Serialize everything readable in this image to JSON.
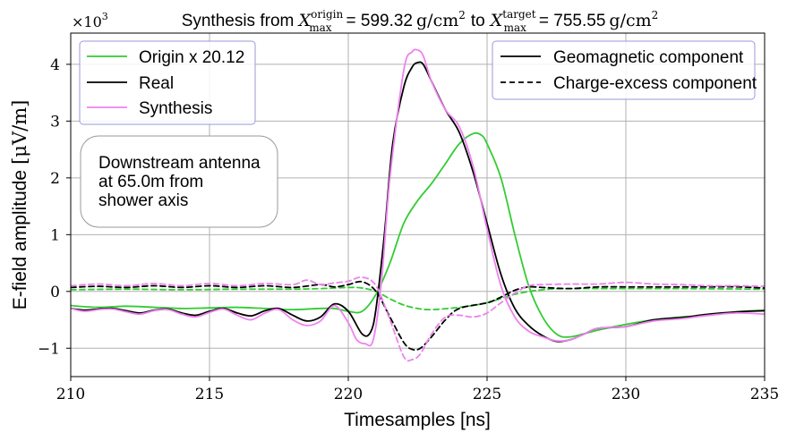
{
  "chart_data": {
    "type": "line",
    "title": {
      "prefix": "Synthesis from ",
      "origin_var": "X",
      "origin_sup": "origin",
      "origin_sub": "max",
      "origin_value": "= 599.32",
      "origin_unit": "g/cm",
      "origin_unit_exp": "2",
      "mid": "to",
      "target_var": "X",
      "target_sup": "target",
      "target_sub": "max",
      "target_value": "= 755.55",
      "target_unit": "g/cm",
      "target_unit_exp": "2"
    },
    "xlabel": "Timesamples [ns]",
    "ylabel_text": "E-field amplitude",
    "ylabel_unit": "[μV/m]",
    "y_multiplier_base": "×10",
    "y_multiplier_exp": "3",
    "xlim": [
      210,
      235
    ],
    "ylim": [
      -1.5,
      4.55
    ],
    "xticks": [
      210,
      215,
      220,
      225,
      230,
      235
    ],
    "yticks": [
      -1,
      0,
      1,
      2,
      3,
      4
    ],
    "ytick_labels": [
      "−1",
      "0",
      "1",
      "2",
      "3",
      "4"
    ],
    "grid": true,
    "legend_left": [
      "Origin x 20.12",
      "Real",
      "Synthesis"
    ],
    "legend_right": [
      "Geomagnetic component",
      "Charge-excess component"
    ],
    "annotation": [
      "Downstream antenna",
      "at 65.0m from",
      "shower axis"
    ],
    "colors": {
      "origin": "#33cc33",
      "real": "#000000",
      "synthesis": "#ee82ee",
      "grid": "#b0b0b0"
    },
    "series": [
      {
        "name": "Origin x 20.12",
        "component": "geomagnetic",
        "color": "#33cc33",
        "style": "solid",
        "x": [
          210,
          211,
          212,
          213,
          214,
          215,
          216,
          217,
          218,
          219,
          219.5,
          220,
          220.5,
          221,
          221.5,
          222,
          222.5,
          223,
          223.5,
          224,
          224.5,
          224.8,
          225,
          225.5,
          226,
          226.5,
          227,
          227.5,
          228,
          229,
          230,
          231,
          232,
          233,
          234,
          235
        ],
        "y": [
          -0.25,
          -0.28,
          -0.26,
          -0.28,
          -0.3,
          -0.29,
          -0.28,
          -0.3,
          -0.32,
          -0.3,
          -0.3,
          -0.35,
          -0.35,
          -0.05,
          0.5,
          1.2,
          1.6,
          1.9,
          2.25,
          2.6,
          2.78,
          2.75,
          2.6,
          2.0,
          1.0,
          0.1,
          -0.45,
          -0.75,
          -0.8,
          -0.68,
          -0.58,
          -0.5,
          -0.45,
          -0.42,
          -0.36,
          -0.33
        ]
      },
      {
        "name": "Origin x 20.12",
        "component": "charge-excess",
        "color": "#33cc33",
        "style": "dashed",
        "x": [
          210,
          212,
          214,
          216,
          218,
          219,
          220,
          220.5,
          221,
          221.5,
          222,
          222.5,
          223,
          224,
          225,
          226,
          227,
          228,
          230,
          232,
          235
        ],
        "y": [
          0.03,
          0.04,
          0.03,
          0.04,
          0.04,
          0.05,
          0.07,
          0.06,
          0.0,
          -0.13,
          -0.24,
          -0.3,
          -0.32,
          -0.28,
          -0.2,
          -0.05,
          0.03,
          0.05,
          0.05,
          0.05,
          0.04
        ]
      },
      {
        "name": "Real",
        "component": "geomagnetic",
        "color": "#000000",
        "style": "solid",
        "x": [
          210,
          210.5,
          211,
          211.5,
          212,
          212.5,
          213,
          213.5,
          214,
          214.5,
          215,
          215.5,
          216,
          216.5,
          217,
          217.5,
          218,
          218.5,
          219,
          219.5,
          220,
          220.5,
          220.8,
          221,
          221.3,
          221.6,
          222,
          222.3,
          222.5,
          222.7,
          223,
          223.5,
          224,
          224.5,
          225,
          225.5,
          226,
          226.5,
          227,
          227.5,
          228,
          228.5,
          229,
          230,
          231,
          232,
          233,
          234,
          235
        ],
        "y": [
          -0.3,
          -0.33,
          -0.31,
          -0.3,
          -0.34,
          -0.38,
          -0.33,
          -0.31,
          -0.38,
          -0.42,
          -0.35,
          -0.3,
          -0.38,
          -0.43,
          -0.34,
          -0.3,
          -0.42,
          -0.52,
          -0.45,
          -0.22,
          -0.35,
          -0.75,
          -0.72,
          -0.3,
          1.0,
          2.6,
          3.6,
          3.95,
          4.03,
          4.0,
          3.7,
          3.2,
          2.8,
          2.1,
          1.2,
          0.3,
          -0.3,
          -0.6,
          -0.78,
          -0.88,
          -0.85,
          -0.75,
          -0.65,
          -0.62,
          -0.5,
          -0.46,
          -0.4,
          -0.36,
          -0.34
        ]
      },
      {
        "name": "Real",
        "component": "charge-excess",
        "color": "#000000",
        "style": "dashed",
        "x": [
          210,
          211,
          212,
          213,
          214,
          215,
          216,
          217,
          218,
          219,
          219.5,
          220,
          220.5,
          221,
          221.5,
          222,
          222.3,
          222.6,
          223,
          223.5,
          224,
          225,
          225.5,
          226,
          226.5,
          227,
          228,
          229,
          230,
          231,
          232,
          233,
          234,
          235
        ],
        "y": [
          0.07,
          0.09,
          0.07,
          0.1,
          0.07,
          0.1,
          0.07,
          0.1,
          0.07,
          0.12,
          0.08,
          0.12,
          0.17,
          0.0,
          -0.45,
          -0.9,
          -1.02,
          -1.0,
          -0.8,
          -0.5,
          -0.3,
          -0.2,
          -0.1,
          0.02,
          0.08,
          0.07,
          0.05,
          0.08,
          0.08,
          0.08,
          0.08,
          0.08,
          0.08,
          0.06
        ]
      },
      {
        "name": "Synthesis",
        "component": "geomagnetic",
        "color": "#ee82ee",
        "style": "solid",
        "x": [
          210,
          210.5,
          211,
          211.5,
          212,
          212.5,
          213,
          213.5,
          214,
          214.5,
          215,
          215.5,
          216,
          216.5,
          217,
          217.5,
          218,
          218.5,
          219,
          219.5,
          220,
          220.3,
          220.6,
          220.9,
          221.2,
          221.5,
          222,
          222.3,
          222.5,
          222.7,
          223,
          223.5,
          224,
          224.5,
          225,
          225.5,
          226,
          226.5,
          227,
          227.5,
          228,
          228.5,
          229,
          230,
          231,
          232,
          233,
          234,
          235
        ],
        "y": [
          -0.3,
          -0.35,
          -0.32,
          -0.31,
          -0.36,
          -0.4,
          -0.34,
          -0.32,
          -0.4,
          -0.45,
          -0.37,
          -0.31,
          -0.42,
          -0.5,
          -0.38,
          -0.32,
          -0.5,
          -0.6,
          -0.52,
          -0.25,
          -0.55,
          -0.85,
          -0.92,
          -0.85,
          0.2,
          2.0,
          3.9,
          4.22,
          4.25,
          4.15,
          3.7,
          3.2,
          2.9,
          2.2,
          1.1,
          0.1,
          -0.45,
          -0.7,
          -0.8,
          -0.87,
          -0.85,
          -0.75,
          -0.65,
          -0.62,
          -0.52,
          -0.48,
          -0.42,
          -0.38,
          -0.4
        ]
      },
      {
        "name": "Synthesis",
        "component": "charge-excess",
        "color": "#ee82ee",
        "style": "dashed",
        "x": [
          210,
          211,
          212,
          213,
          214,
          215,
          216,
          217,
          218,
          218.5,
          219,
          219.5,
          220,
          220.5,
          221,
          221.5,
          222,
          222.3,
          222.6,
          223,
          223.5,
          224,
          224.5,
          225,
          225.5,
          226,
          226.5,
          227,
          228,
          229,
          230,
          231,
          232,
          233,
          234,
          235
        ],
        "y": [
          0.1,
          0.13,
          0.1,
          0.14,
          0.1,
          0.14,
          0.1,
          0.14,
          0.12,
          0.2,
          0.12,
          0.15,
          0.18,
          0.25,
          0.1,
          -0.5,
          -1.15,
          -1.2,
          -1.1,
          -0.75,
          -0.45,
          -0.42,
          -0.45,
          -0.38,
          -0.2,
          -0.03,
          0.1,
          0.12,
          0.13,
          0.13,
          0.16,
          0.13,
          0.12,
          0.1,
          0.1,
          0.09
        ]
      }
    ]
  }
}
